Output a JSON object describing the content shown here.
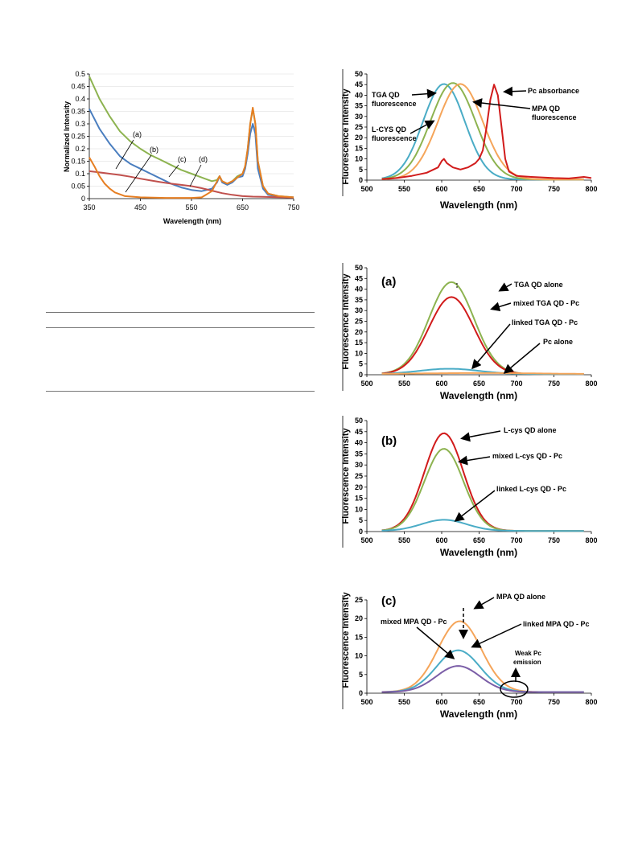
{
  "colors": {
    "green": "#8db350",
    "blue": "#4a7ebf",
    "red": "#c0504d",
    "orange": "#e67e22",
    "teal": "#4aacc6",
    "lorange": "#f5a55a",
    "bred": "#d11b1b",
    "purple": "#7b5ea7",
    "grid": "#d9d9d9"
  },
  "chart_data": [
    {
      "id": "abs",
      "type": "line",
      "xlabel": "Wavelength (nm)",
      "ylabel": "Normalized Intensity",
      "xlim": [
        350,
        750
      ],
      "ylim": [
        0,
        0.5
      ],
      "xticks": [
        "350",
        "450",
        "550",
        "650",
        "750"
      ],
      "yticks": [
        "0",
        "0.05",
        "0.1",
        "0.15",
        "0.2",
        "0.25",
        "0.3",
        "0.35",
        "0.4",
        "0.45",
        "0.5"
      ],
      "annotations": [
        "(a)",
        "(b)",
        "(c)",
        "(d)"
      ],
      "series": [
        {
          "color": "green",
          "points": [
            [
              350,
              0.49
            ],
            [
              370,
              0.4
            ],
            [
              390,
              0.33
            ],
            [
              410,
              0.27
            ],
            [
              430,
              0.23
            ],
            [
              450,
              0.2
            ],
            [
              470,
              0.175
            ],
            [
              490,
              0.155
            ],
            [
              510,
              0.135
            ],
            [
              530,
              0.115
            ],
            [
              550,
              0.1
            ],
            [
              570,
              0.085
            ],
            [
              590,
              0.07
            ],
            [
              600,
              0.075
            ],
            [
              605,
              0.09
            ],
            [
              610,
              0.07
            ],
            [
              620,
              0.06
            ],
            [
              630,
              0.07
            ],
            [
              640,
              0.09
            ],
            [
              650,
              0.1
            ],
            [
              655,
              0.13
            ],
            [
              660,
              0.2
            ],
            [
              665,
              0.3
            ],
            [
              670,
              0.36
            ],
            [
              675,
              0.3
            ],
            [
              680,
              0.15
            ],
            [
              690,
              0.05
            ],
            [
              700,
              0.02
            ],
            [
              720,
              0.01
            ],
            [
              750,
              0.005
            ]
          ]
        },
        {
          "color": "blue",
          "points": [
            [
              350,
              0.36
            ],
            [
              370,
              0.28
            ],
            [
              390,
              0.22
            ],
            [
              410,
              0.17
            ],
            [
              430,
              0.14
            ],
            [
              450,
              0.12
            ],
            [
              470,
              0.1
            ],
            [
              490,
              0.08
            ],
            [
              510,
              0.06
            ],
            [
              530,
              0.045
            ],
            [
              550,
              0.035
            ],
            [
              570,
              0.03
            ],
            [
              590,
              0.04
            ],
            [
              600,
              0.065
            ],
            [
              605,
              0.09
            ],
            [
              610,
              0.065
            ],
            [
              620,
              0.055
            ],
            [
              630,
              0.065
            ],
            [
              640,
              0.085
            ],
            [
              650,
              0.09
            ],
            [
              655,
              0.12
            ],
            [
              660,
              0.18
            ],
            [
              665,
              0.26
            ],
            [
              670,
              0.3
            ],
            [
              675,
              0.26
            ],
            [
              680,
              0.12
            ],
            [
              690,
              0.04
            ],
            [
              700,
              0.015
            ],
            [
              720,
              0.008
            ],
            [
              750,
              0.005
            ]
          ]
        },
        {
          "color": "red",
          "points": [
            [
              350,
              0.11
            ],
            [
              370,
              0.105
            ],
            [
              390,
              0.1
            ],
            [
              410,
              0.095
            ],
            [
              430,
              0.088
            ],
            [
              450,
              0.08
            ],
            [
              470,
              0.073
            ],
            [
              490,
              0.066
            ],
            [
              510,
              0.06
            ],
            [
              530,
              0.055
            ],
            [
              550,
              0.05
            ],
            [
              570,
              0.042
            ],
            [
              590,
              0.032
            ],
            [
              610,
              0.022
            ],
            [
              630,
              0.015
            ],
            [
              650,
              0.01
            ],
            [
              670,
              0.008
            ],
            [
              690,
              0.007
            ],
            [
              710,
              0.006
            ],
            [
              730,
              0.005
            ],
            [
              750,
              0.004
            ]
          ]
        },
        {
          "color": "orange",
          "points": [
            [
              350,
              0.165
            ],
            [
              360,
              0.13
            ],
            [
              370,
              0.09
            ],
            [
              380,
              0.06
            ],
            [
              390,
              0.04
            ],
            [
              400,
              0.025
            ],
            [
              420,
              0.01
            ],
            [
              450,
              0.005
            ],
            [
              500,
              0.003
            ],
            [
              550,
              0.003
            ],
            [
              570,
              0.005
            ],
            [
              590,
              0.03
            ],
            [
              600,
              0.07
            ],
            [
              605,
              0.09
            ],
            [
              610,
              0.07
            ],
            [
              620,
              0.06
            ],
            [
              630,
              0.07
            ],
            [
              640,
              0.085
            ],
            [
              650,
              0.1
            ],
            [
              655,
              0.13
            ],
            [
              660,
              0.2
            ],
            [
              665,
              0.3
            ],
            [
              670,
              0.365
            ],
            [
              675,
              0.3
            ],
            [
              680,
              0.15
            ],
            [
              690,
              0.05
            ],
            [
              700,
              0.02
            ],
            [
              720,
              0.01
            ],
            [
              750,
              0.005
            ]
          ]
        }
      ]
    },
    {
      "id": "spec",
      "type": "line",
      "xlabel": "Wavelength  (nm)",
      "ylabel": "Fluorescence Intensity",
      "xlim": [
        500,
        800
      ],
      "ylim": [
        0,
        50
      ],
      "xticks": [
        "500",
        "550",
        "600",
        "650",
        "700",
        "750",
        "800"
      ],
      "yticks": [
        "0",
        "5",
        "10",
        "15",
        "20",
        "25",
        "30",
        "35",
        "40",
        "45",
        "50"
      ],
      "labels": [
        "TGA QD",
        "fluorescence",
        "L-CYS QD",
        "fluorescence",
        "Pc absorbance",
        "MPA QD",
        "fluorescence"
      ],
      "series": [
        {
          "color": "teal",
          "mu": 603,
          "sigma": 28,
          "amp": 45
        },
        {
          "color": "green",
          "mu": 615,
          "sigma": 30,
          "amp": 45.5
        },
        {
          "color": "lorange",
          "mu": 625,
          "sigma": 30,
          "amp": 45
        },
        {
          "color": "bred",
          "points": [
            [
              520,
              0.5
            ],
            [
              540,
              1
            ],
            [
              560,
              2
            ],
            [
              580,
              3.5
            ],
            [
              595,
              6
            ],
            [
              600,
              9
            ],
            [
              603,
              10
            ],
            [
              607,
              8
            ],
            [
              615,
              6
            ],
            [
              625,
              5
            ],
            [
              635,
              6
            ],
            [
              645,
              8
            ],
            [
              650,
              10
            ],
            [
              655,
              14
            ],
            [
              660,
              25
            ],
            [
              665,
              38
            ],
            [
              670,
              45
            ],
            [
              675,
              40
            ],
            [
              680,
              25
            ],
            [
              685,
              10
            ],
            [
              690,
              4
            ],
            [
              700,
              2
            ],
            [
              720,
              1.5
            ],
            [
              750,
              1
            ],
            [
              770,
              0.8
            ],
            [
              790,
              1.5
            ],
            [
              800,
              1
            ]
          ]
        }
      ]
    },
    {
      "id": "a",
      "type": "line",
      "panel": "(a)",
      "xlabel": "Wavelength  (nm)",
      "ylabel": "Fluorescence Intensity",
      "xlim": [
        500,
        800
      ],
      "ylim": [
        0,
        50
      ],
      "xticks": [
        "500",
        "550",
        "600",
        "650",
        "700",
        "750",
        "800"
      ],
      "yticks": [
        "0",
        "5",
        "10",
        "15",
        "20",
        "25",
        "30",
        "35",
        "40",
        "45",
        "50"
      ],
      "labels": [
        "TGA QD alone",
        "mixed TGA QD - Pc",
        "linked TGA QD - Pc",
        "Pc alone"
      ],
      "series": [
        {
          "color": "green",
          "mu": 613,
          "sigma": 30,
          "amp": 43
        },
        {
          "color": "bred",
          "mu": 613,
          "sigma": 30,
          "amp": 36
        },
        {
          "color": "teal",
          "mu": 610,
          "sigma": 40,
          "amp": 2.5
        },
        {
          "color": "lorange",
          "mu": 650,
          "sigma": 80,
          "amp": 0.5
        }
      ]
    },
    {
      "id": "b",
      "type": "line",
      "panel": "(b)",
      "xlabel": "Wavelength  (nm)",
      "ylabel": "Fluorescence Intensity",
      "xlim": [
        500,
        800
      ],
      "ylim": [
        0,
        50
      ],
      "xticks": [
        "500",
        "550",
        "600",
        "650",
        "700",
        "750",
        "800"
      ],
      "yticks": [
        "0",
        "5",
        "10",
        "15",
        "20",
        "25",
        "30",
        "35",
        "40",
        "45",
        "50"
      ],
      "labels": [
        "L-cys QD alone",
        "mixed L-cys QD - Pc",
        "linked L-cys QD - Pc"
      ],
      "series": [
        {
          "color": "bred",
          "mu": 603,
          "sigma": 26,
          "amp": 44
        },
        {
          "color": "green",
          "mu": 603,
          "sigma": 26,
          "amp": 37
        },
        {
          "color": "teal",
          "mu": 603,
          "sigma": 30,
          "amp": 5
        }
      ]
    },
    {
      "id": "c",
      "type": "line",
      "panel": "(c)",
      "xlabel": "Wavelength  (nm)",
      "ylabel": "Fluorescence Intensity",
      "xlim": [
        500,
        800
      ],
      "ylim": [
        0,
        25
      ],
      "xticks": [
        "500",
        "550",
        "600",
        "650",
        "700",
        "750",
        "800"
      ],
      "yticks": [
        "0",
        "5",
        "10",
        "15",
        "20",
        "25"
      ],
      "labels": [
        "MPA QD alone",
        "linked MPA QD - Pc",
        "mixed MPA QD - Pc",
        "Weak Pc",
        "emission"
      ],
      "series": [
        {
          "color": "lorange",
          "mu": 624,
          "sigma": 29,
          "amp": 19
        },
        {
          "color": "teal",
          "mu": 622,
          "sigma": 29,
          "amp": 11.2
        },
        {
          "color": "purple",
          "mu": 622,
          "sigma": 29,
          "amp": 7
        }
      ]
    }
  ]
}
